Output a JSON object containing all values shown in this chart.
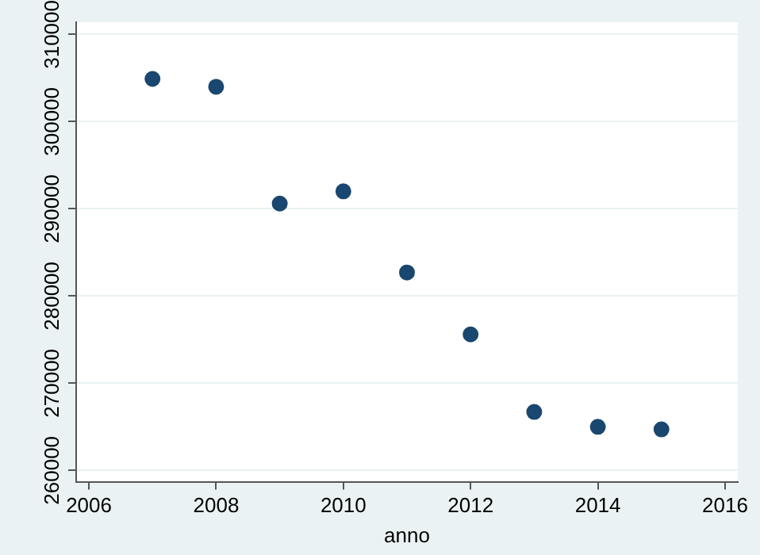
{
  "chart_data": {
    "type": "scatter",
    "xlabel": "anno",
    "x": [
      2007,
      2008,
      2009,
      2010,
      2011,
      2012,
      2013,
      2014,
      2015
    ],
    "series": [
      {
        "color": "#1a476f",
        "values": [
          304900,
          304000,
          290600,
          292000,
          282700,
          275600,
          266700,
          265000,
          264700
        ]
      }
    ],
    "xlim": [
      2005.8,
      2016.2
    ],
    "xticks": [
      2006,
      2008,
      2010,
      2012,
      2014,
      2016
    ],
    "ylim": [
      258700,
      311400
    ],
    "yticks": [
      260000,
      270000,
      280000,
      290000,
      300000,
      310000
    ],
    "grid": "y",
    "marker": "circle",
    "legend": false
  }
}
